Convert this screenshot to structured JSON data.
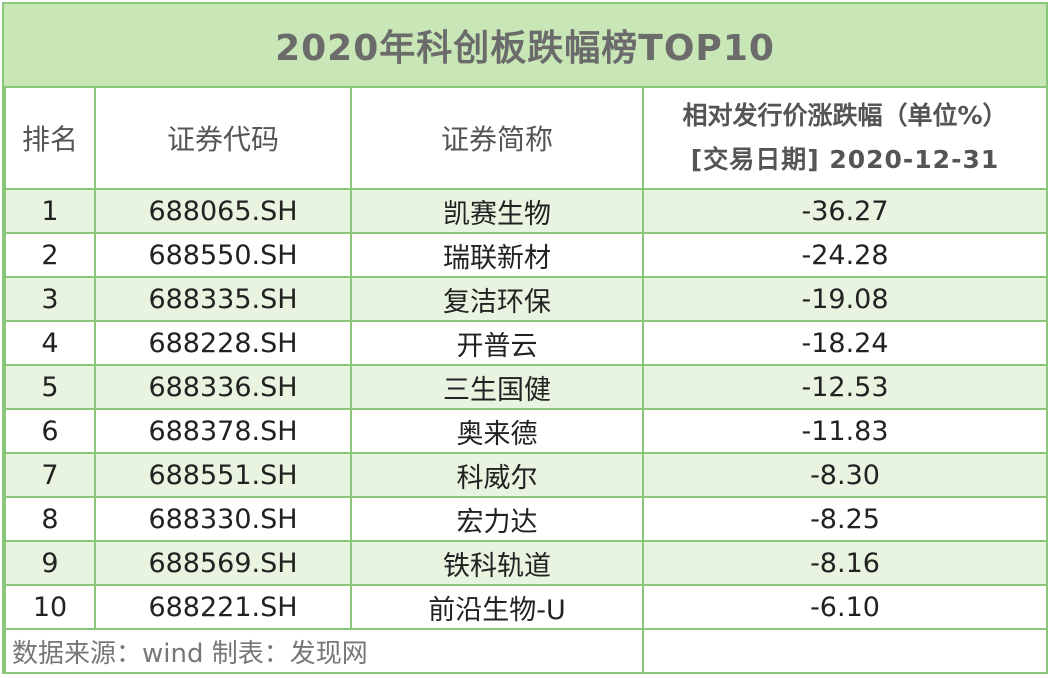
{
  "title": "2020年科创板跌幅榜TOP10",
  "headers": {
    "rank": "排名",
    "code": "证券代码",
    "name": "证券简称",
    "value_line1": "相对发行价涨跌幅（单位%）",
    "value_line2": "[交易日期] 2020-12-31"
  },
  "rows": [
    {
      "rank": "1",
      "code": "688065.SH",
      "name": "凯赛生物",
      "value": "-36.27"
    },
    {
      "rank": "2",
      "code": "688550.SH",
      "name": "瑞联新材",
      "value": "-24.28"
    },
    {
      "rank": "3",
      "code": "688335.SH",
      "name": "复洁环保",
      "value": "-19.08"
    },
    {
      "rank": "4",
      "code": "688228.SH",
      "name": "开普云",
      "value": "-18.24"
    },
    {
      "rank": "5",
      "code": "688336.SH",
      "name": "三生国健",
      "value": "-12.53"
    },
    {
      "rank": "6",
      "code": "688378.SH",
      "name": "奥来德",
      "value": "-11.83"
    },
    {
      "rank": "7",
      "code": "688551.SH",
      "name": "科威尔",
      "value": "-8.30"
    },
    {
      "rank": "8",
      "code": "688330.SH",
      "name": "宏力达",
      "value": "-8.25"
    },
    {
      "rank": "9",
      "code": "688569.SH",
      "name": "铁科轨道",
      "value": "-8.16"
    },
    {
      "rank": "10",
      "code": "688221.SH",
      "name": "前沿生物-U",
      "value": "-6.10"
    }
  ],
  "footer": "数据来源：wind  制表：发现网",
  "colors": {
    "border": "#8bc77a",
    "title_bg": "#c8e6b6",
    "alt_row_bg": "#e9f4e0"
  }
}
